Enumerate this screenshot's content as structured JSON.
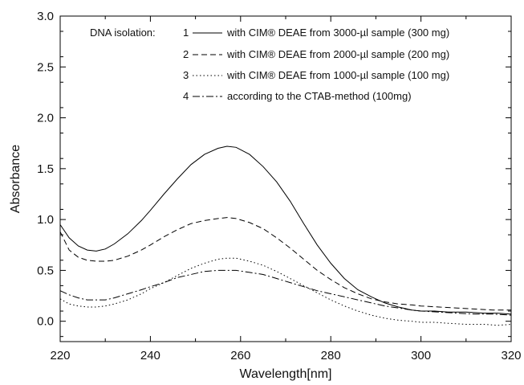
{
  "chart_data": {
    "type": "line",
    "title": "",
    "xlabel": "Wavelength[nm]",
    "ylabel": "Absorbance",
    "xlim": [
      220,
      320
    ],
    "ylim": [
      -0.2,
      3.0
    ],
    "xticks": [
      220,
      240,
      260,
      280,
      300,
      320
    ],
    "yticks": [
      0.0,
      0.5,
      1.0,
      1.5,
      2.0,
      2.5,
      3.0
    ],
    "xtick_labels": [
      "220",
      "240",
      "260",
      "280",
      "300",
      "320"
    ],
    "ytick_labels": [
      "0.0",
      "0.5",
      "1.0",
      "1.5",
      "2.0",
      "2.5",
      "3.0"
    ],
    "grid": false,
    "legend_position": "top-right",
    "legend_heading": "DNA isolation:",
    "series": [
      {
        "name": "with CIM® DEAE from 3000-µl sample (300 mg)",
        "number": "1",
        "dash": "solid",
        "x": [
          220,
          222,
          224,
          226,
          228,
          230,
          232,
          235,
          238,
          240,
          243,
          246,
          249,
          252,
          255,
          257,
          259,
          262,
          265,
          268,
          271,
          274,
          277,
          280,
          283,
          286,
          289,
          292,
          295,
          298,
          300,
          303,
          306,
          310,
          314,
          317,
          320
        ],
        "y": [
          0.95,
          0.82,
          0.74,
          0.7,
          0.69,
          0.71,
          0.76,
          0.86,
          0.99,
          1.09,
          1.25,
          1.4,
          1.54,
          1.64,
          1.7,
          1.72,
          1.71,
          1.64,
          1.52,
          1.37,
          1.18,
          0.96,
          0.75,
          0.57,
          0.42,
          0.31,
          0.24,
          0.18,
          0.14,
          0.11,
          0.1,
          0.1,
          0.09,
          0.09,
          0.08,
          0.08,
          0.07
        ]
      },
      {
        "name": "with CIM® DEAE from 2000-µl sample (200 mg)",
        "number": "2",
        "dash": "dash",
        "x": [
          220,
          222,
          224,
          226,
          228,
          230,
          232,
          235,
          238,
          240,
          243,
          246,
          249,
          252,
          255,
          257,
          259,
          262,
          265,
          268,
          271,
          274,
          277,
          280,
          283,
          286,
          289,
          292,
          295,
          298,
          300,
          304,
          308,
          312,
          316,
          320
        ],
        "y": [
          0.88,
          0.7,
          0.63,
          0.6,
          0.59,
          0.59,
          0.6,
          0.64,
          0.7,
          0.75,
          0.83,
          0.9,
          0.96,
          0.99,
          1.01,
          1.02,
          1.01,
          0.97,
          0.91,
          0.82,
          0.72,
          0.61,
          0.5,
          0.41,
          0.33,
          0.27,
          0.22,
          0.19,
          0.17,
          0.16,
          0.15,
          0.14,
          0.13,
          0.12,
          0.11,
          0.11
        ]
      },
      {
        "name": "with CIM® DEAE from 1000-µl sample (100 mg)",
        "number": "3",
        "dash": "dot",
        "x": [
          220,
          222,
          224,
          226,
          228,
          230,
          232,
          235,
          238,
          240,
          243,
          246,
          249,
          252,
          255,
          257,
          259,
          262,
          265,
          268,
          271,
          274,
          277,
          280,
          283,
          286,
          289,
          292,
          295,
          298,
          300,
          303,
          306,
          310,
          314,
          317,
          320
        ],
        "y": [
          0.22,
          0.17,
          0.15,
          0.14,
          0.14,
          0.15,
          0.17,
          0.21,
          0.27,
          0.32,
          0.38,
          0.45,
          0.52,
          0.57,
          0.61,
          0.62,
          0.62,
          0.59,
          0.55,
          0.49,
          0.42,
          0.35,
          0.28,
          0.21,
          0.15,
          0.1,
          0.06,
          0.03,
          0.01,
          0.0,
          -0.01,
          -0.01,
          -0.02,
          -0.03,
          -0.03,
          -0.04,
          -0.03
        ]
      },
      {
        "name": "according to the CTAB-method (100mg)",
        "number": "4",
        "dash": "dashdot",
        "x": [
          220,
          222,
          224,
          226,
          228,
          230,
          232,
          235,
          238,
          240,
          243,
          246,
          249,
          252,
          255,
          257,
          259,
          262,
          265,
          268,
          271,
          274,
          277,
          280,
          283,
          286,
          289,
          292,
          295,
          298,
          300,
          304,
          308,
          312,
          316,
          320
        ],
        "y": [
          0.3,
          0.26,
          0.23,
          0.21,
          0.21,
          0.21,
          0.23,
          0.27,
          0.31,
          0.34,
          0.38,
          0.43,
          0.46,
          0.49,
          0.5,
          0.5,
          0.5,
          0.48,
          0.46,
          0.42,
          0.38,
          0.34,
          0.3,
          0.27,
          0.24,
          0.21,
          0.18,
          0.15,
          0.13,
          0.11,
          0.1,
          0.09,
          0.08,
          0.07,
          0.07,
          0.06
        ]
      }
    ]
  }
}
